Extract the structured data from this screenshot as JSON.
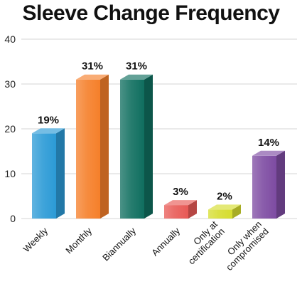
{
  "chart_data": {
    "type": "bar",
    "title": "Sleeve Change Frequency",
    "xlabel": "",
    "ylabel": "",
    "categories": [
      "Weekly",
      "Monthly",
      "Biannually",
      "Annually",
      "Only at certification",
      "Only when compromised"
    ],
    "category_lines": [
      [
        "Weekly"
      ],
      [
        "Monthly"
      ],
      [
        "Biannually"
      ],
      [
        "Annually"
      ],
      [
        "Only at",
        "certification"
      ],
      [
        "Only when",
        "compromised"
      ]
    ],
    "values": [
      19,
      31,
      31,
      3,
      2,
      14
    ],
    "data_labels": [
      "19%",
      "31%",
      "31%",
      "3%",
      "2%",
      "14%"
    ],
    "ylim": [
      0,
      40
    ],
    "yticks": [
      0,
      10,
      20,
      30,
      40
    ],
    "grid": true,
    "style": "3d-bar",
    "colors": [
      "#2b9ad6",
      "#f57f2a",
      "#0f6e5f",
      "#e85a56",
      "#d6dd2e",
      "#7d4ba2"
    ]
  }
}
